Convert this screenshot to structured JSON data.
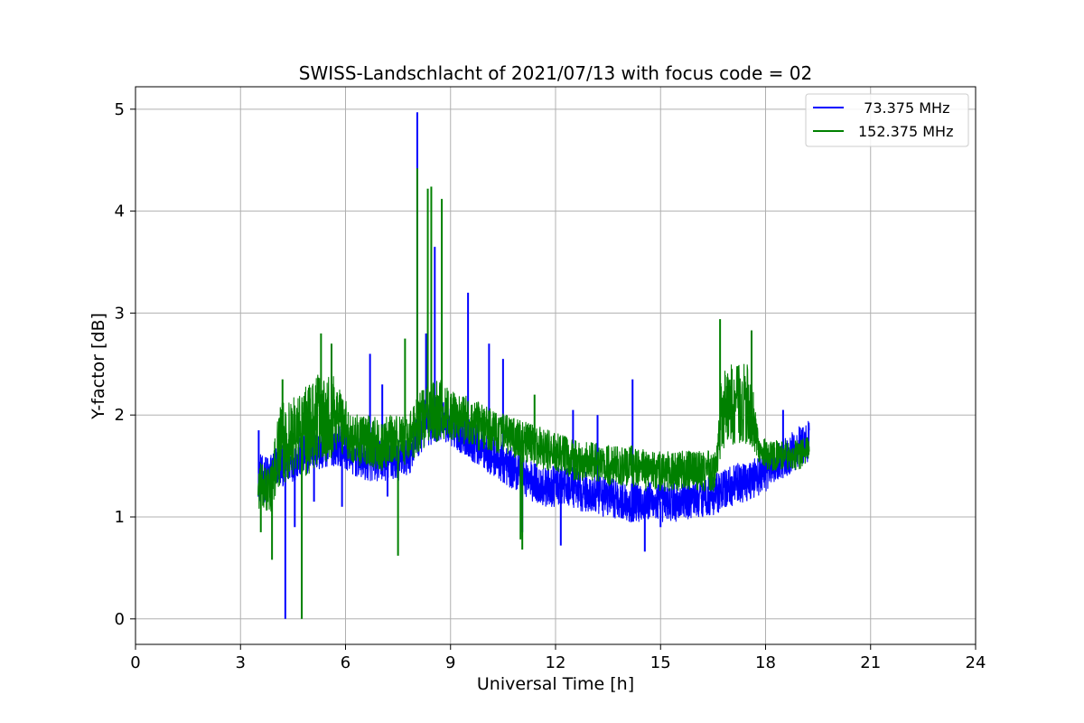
{
  "chart_data": {
    "type": "line",
    "title": "SWISS-Landschlacht of 2021/07/13 with focus code = 02",
    "xlabel": "Universal Time [h]",
    "ylabel": "Y-factor [dB]",
    "xlim": [
      0,
      24
    ],
    "ylim": [
      -0.25,
      5.22
    ],
    "xticks": [
      0,
      3,
      6,
      9,
      12,
      15,
      18,
      21,
      24
    ],
    "yticks": [
      0,
      1,
      2,
      3,
      4,
      5
    ],
    "grid": true,
    "legend_position": "top-right",
    "series": [
      {
        "name": "  73.375 MHz",
        "color": "#0000ff",
        "x": [
          3.5,
          3.6,
          3.8,
          4.0,
          4.2,
          4.5,
          4.8,
          5.0,
          5.3,
          5.6,
          5.9,
          6.2,
          6.6,
          6.9,
          7.2,
          7.5,
          7.8,
          8.0,
          8.2,
          8.4,
          8.7,
          9.0,
          9.4,
          9.8,
          10.2,
          10.6,
          11.0,
          11.3,
          11.6,
          12.0,
          12.4,
          12.8,
          13.2,
          13.6,
          14.0,
          14.4,
          14.8,
          15.2,
          15.6,
          16.0,
          16.4,
          16.7,
          17.0,
          17.4,
          17.8,
          18.2,
          18.6,
          19.0,
          19.25
        ],
        "y": [
          1.45,
          1.35,
          1.4,
          1.5,
          1.5,
          1.55,
          1.6,
          1.65,
          1.65,
          1.7,
          1.7,
          1.6,
          1.55,
          1.55,
          1.55,
          1.55,
          1.6,
          1.75,
          1.9,
          1.95,
          1.95,
          1.9,
          1.8,
          1.7,
          1.6,
          1.5,
          1.45,
          1.35,
          1.3,
          1.3,
          1.3,
          1.25,
          1.2,
          1.2,
          1.15,
          1.15,
          1.15,
          1.15,
          1.15,
          1.2,
          1.2,
          1.25,
          1.3,
          1.35,
          1.4,
          1.5,
          1.6,
          1.7,
          1.75
        ],
        "amplitude": [
          0.25,
          0.25,
          0.2,
          0.2,
          0.2,
          0.2,
          0.2,
          0.2,
          0.2,
          0.2,
          0.2,
          0.2,
          0.2,
          0.2,
          0.2,
          0.2,
          0.2,
          0.2,
          0.25,
          0.25,
          0.2,
          0.2,
          0.2,
          0.2,
          0.2,
          0.2,
          0.2,
          0.2,
          0.2,
          0.2,
          0.2,
          0.2,
          0.2,
          0.2,
          0.2,
          0.2,
          0.2,
          0.2,
          0.2,
          0.2,
          0.2,
          0.2,
          0.2,
          0.2,
          0.2,
          0.2,
          0.2,
          0.2,
          0.2
        ],
        "spikes": [
          [
            3.52,
            1.85
          ],
          [
            4.28,
            0.0
          ],
          [
            4.55,
            0.9
          ],
          [
            5.1,
            1.15
          ],
          [
            5.9,
            1.1
          ],
          [
            6.7,
            2.6
          ],
          [
            7.05,
            2.3
          ],
          [
            7.2,
            1.2
          ],
          [
            8.05,
            4.97
          ],
          [
            8.3,
            2.8
          ],
          [
            8.55,
            3.65
          ],
          [
            9.5,
            3.2
          ],
          [
            10.1,
            2.7
          ],
          [
            10.5,
            2.55
          ],
          [
            11.05,
            0.85
          ],
          [
            12.15,
            0.72
          ],
          [
            12.5,
            2.05
          ],
          [
            13.2,
            2.0
          ],
          [
            14.2,
            2.35
          ],
          [
            14.55,
            0.66
          ],
          [
            15.0,
            0.9
          ],
          [
            18.5,
            2.05
          ]
        ]
      },
      {
        "name": "152.375 MHz",
        "color": "#008000",
        "x": [
          3.5,
          3.7,
          3.9,
          4.1,
          4.3,
          4.6,
          4.9,
          5.2,
          5.5,
          5.8,
          6.1,
          6.4,
          6.7,
          7.0,
          7.3,
          7.6,
          7.9,
          8.1,
          8.4,
          8.7,
          9.0,
          9.4,
          9.8,
          10.2,
          10.6,
          11.0,
          11.4,
          11.8,
          12.2,
          12.6,
          13.0,
          13.4,
          13.8,
          14.2,
          14.6,
          15.0,
          15.4,
          15.8,
          16.2,
          16.6,
          16.75,
          17.0,
          17.3,
          17.6,
          17.8,
          18.1,
          18.5,
          18.9,
          19.25
        ],
        "y": [
          1.3,
          1.25,
          1.3,
          1.7,
          1.75,
          1.8,
          1.85,
          1.95,
          2.0,
          2.0,
          1.8,
          1.75,
          1.75,
          1.7,
          1.75,
          1.75,
          1.8,
          1.95,
          2.0,
          2.05,
          2.0,
          1.95,
          1.9,
          1.85,
          1.8,
          1.75,
          1.7,
          1.65,
          1.6,
          1.55,
          1.55,
          1.5,
          1.5,
          1.5,
          1.45,
          1.45,
          1.45,
          1.45,
          1.45,
          1.45,
          2.05,
          2.1,
          2.1,
          2.1,
          1.65,
          1.6,
          1.6,
          1.6,
          1.65
        ],
        "amplitude": [
          0.25,
          0.25,
          0.25,
          0.4,
          0.4,
          0.4,
          0.45,
          0.45,
          0.45,
          0.35,
          0.25,
          0.25,
          0.25,
          0.25,
          0.25,
          0.25,
          0.25,
          0.3,
          0.3,
          0.3,
          0.25,
          0.25,
          0.25,
          0.2,
          0.2,
          0.2,
          0.2,
          0.2,
          0.2,
          0.2,
          0.2,
          0.2,
          0.2,
          0.2,
          0.2,
          0.2,
          0.2,
          0.2,
          0.2,
          0.2,
          0.4,
          0.4,
          0.4,
          0.4,
          0.15,
          0.15,
          0.15,
          0.15,
          0.15
        ],
        "spikes": [
          [
            3.58,
            0.85
          ],
          [
            3.9,
            0.58
          ],
          [
            4.2,
            2.35
          ],
          [
            4.75,
            0.0
          ],
          [
            5.3,
            2.8
          ],
          [
            5.6,
            2.7
          ],
          [
            7.5,
            0.62
          ],
          [
            7.7,
            2.75
          ],
          [
            8.05,
            4.42
          ],
          [
            8.35,
            4.22
          ],
          [
            8.45,
            4.24
          ],
          [
            8.75,
            4.12
          ],
          [
            11.0,
            0.78
          ],
          [
            11.05,
            0.68
          ],
          [
            11.4,
            2.2
          ],
          [
            16.7,
            2.94
          ],
          [
            17.6,
            2.83
          ]
        ]
      }
    ]
  }
}
